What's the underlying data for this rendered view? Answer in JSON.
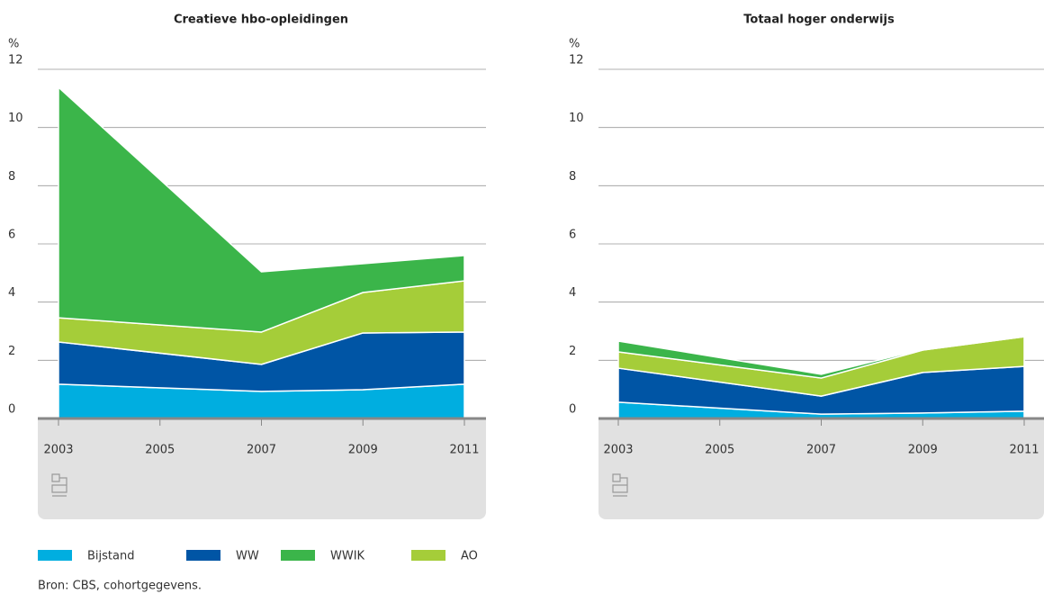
{
  "chart_data": [
    {
      "type": "area",
      "stacked": true,
      "title": "Creatieve hbo-opleidingen",
      "y_label": "%",
      "x": [
        2003,
        2007,
        2009,
        2011
      ],
      "xlim": [
        2003,
        2011
      ],
      "xticks": [
        2003,
        2005,
        2007,
        2009,
        2011
      ],
      "ylim": [
        0,
        12
      ],
      "yticks": [
        0,
        2,
        4,
        6,
        8,
        10,
        12
      ],
      "grid": true,
      "series": [
        {
          "name": "Bijstand",
          "color": "#00aee0",
          "values": [
            1.18,
            0.93,
            0.99,
            1.18
          ]
        },
        {
          "name": "WW",
          "color": "#0055a5",
          "values": [
            1.45,
            0.93,
            1.95,
            1.79
          ]
        },
        {
          "name": "WWIK",
          "color": "#3bb54a",
          "values": [
            7.92,
            2.07,
            0.99,
            0.87
          ]
        },
        {
          "name": "AO",
          "color": "#a5cd39",
          "values": [
            0.83,
            1.11,
            1.39,
            1.76
          ]
        }
      ]
    },
    {
      "type": "area",
      "stacked": true,
      "title": "Totaal hoger onderwijs",
      "y_label": "%",
      "x": [
        2003,
        2007,
        2009,
        2011
      ],
      "xlim": [
        2003,
        2011
      ],
      "xticks": [
        2003,
        2005,
        2007,
        2009,
        2011
      ],
      "ylim": [
        0,
        12
      ],
      "yticks": [
        0,
        2,
        4,
        6,
        8,
        10,
        12
      ],
      "grid": true,
      "series": [
        {
          "name": "Bijstand",
          "color": "#00aee0",
          "values": [
            0.56,
            0.15,
            0.19,
            0.25
          ]
        },
        {
          "name": "WW",
          "color": "#0055a5",
          "values": [
            1.17,
            0.62,
            1.39,
            1.54
          ]
        },
        {
          "name": "WWIK",
          "color": "#3bb54a",
          "values": [
            0.37,
            0.13,
            0.03,
            0
          ]
        },
        {
          "name": "AO",
          "color": "#a5cd39",
          "values": [
            0.56,
            0.62,
            0.77,
            1.02
          ]
        }
      ]
    }
  ],
  "source": "Bron: CBS, cohortgegevens."
}
